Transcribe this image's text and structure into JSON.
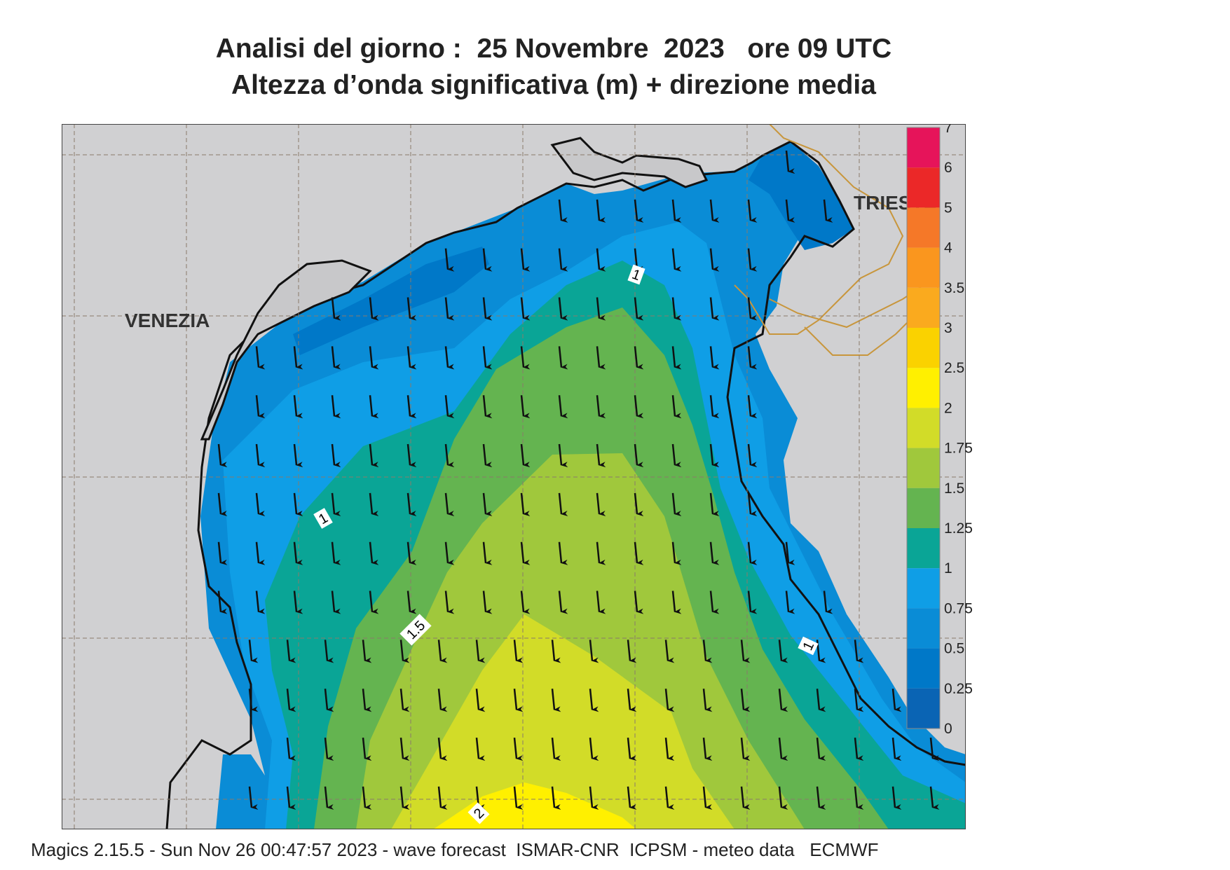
{
  "title": {
    "line1": "Analisi del giorno :  25 Novembre  2023   ore 09 UTC",
    "line2": "Altezza d’onda significativa (m) + direzione media"
  },
  "map": {
    "cities": {
      "venezia": "VENEZIA",
      "trieste": "TRIESTE"
    },
    "contour_labels": {
      "c1_north": "1",
      "c1_west": "1",
      "c15": "1.5",
      "c1_east": "1",
      "c2": "2"
    },
    "land_color": "#d0d0d2",
    "wave_direction": "south (arrows pointing down, slightly south-south-west)"
  },
  "legend": {
    "colors": [
      {
        "from": "0",
        "to": "0.25",
        "color": "#0a64b4"
      },
      {
        "from": "0.25",
        "to": "0.5",
        "color": "#0078c8"
      },
      {
        "from": "0.5",
        "to": "0.75",
        "color": "#0a8cd6"
      },
      {
        "from": "0.75",
        "to": "1",
        "color": "#0f9ee6"
      },
      {
        "from": "1",
        "to": "1.25",
        "color": "#0aa596"
      },
      {
        "from": "1.25",
        "to": "1.5",
        "color": "#64b450"
      },
      {
        "from": "1.5",
        "to": "1.75",
        "color": "#a0c83c"
      },
      {
        "from": "1.75",
        "to": "2",
        "color": "#d2dc28"
      },
      {
        "from": "2",
        "to": "2.5",
        "color": "#fff000"
      },
      {
        "from": "2.5",
        "to": "3",
        "color": "#fad200"
      },
      {
        "from": "3",
        "to": "3.5",
        "color": "#faaa1e"
      },
      {
        "from": "3.5",
        "to": "4",
        "color": "#fa961e"
      },
      {
        "from": "4",
        "to": "5",
        "color": "#f57828"
      },
      {
        "from": "5",
        "to": "6",
        "color": "#eb2828"
      },
      {
        "from": "6",
        "to": "7",
        "color": "#e6145a"
      }
    ],
    "labels": [
      "0",
      "0.25",
      "0.5",
      "0.75",
      "1",
      "1.25",
      "1.5",
      "1.75",
      "2",
      "2.5",
      "3",
      "3.5",
      "4",
      "5",
      "6",
      "7"
    ]
  },
  "footer": "Magics 2.15.5 - Sun Nov 26 00:47:57 2023 - wave forecast  ISMAR-CNR  ICPSM - meteo data   ECMWF"
}
